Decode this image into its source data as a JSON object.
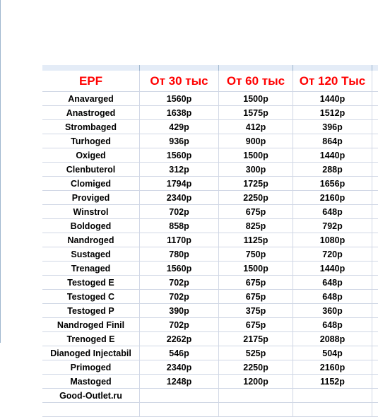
{
  "table": {
    "header": [
      "EPF",
      "От 30 тыс",
      "От 60 тыс",
      "От 120 Тыс"
    ],
    "rows": [
      [
        "Anavarged",
        "1560р",
        "1500р",
        "1440р"
      ],
      [
        "Anastroged",
        "1638р",
        "1575р",
        "1512р"
      ],
      [
        "Strombaged",
        "429р",
        "412р",
        "396р"
      ],
      [
        "Turhoged",
        "936р",
        "900р",
        "864р"
      ],
      [
        "Oxiged",
        "1560р",
        "1500р",
        "1440р"
      ],
      [
        "Clenbuterol",
        "312р",
        "300р",
        "288р"
      ],
      [
        "Clomiged",
        "1794р",
        "1725р",
        "1656р"
      ],
      [
        "Proviged",
        "2340р",
        "2250р",
        "2160р"
      ],
      [
        "Winstrol",
        "702р",
        "675р",
        "648р"
      ],
      [
        "Boldoged",
        "858р",
        "825р",
        "792р"
      ],
      [
        "Nandroged",
        "1170р",
        "1125р",
        "1080р"
      ],
      [
        "Sustaged",
        "780р",
        "750р",
        "720р"
      ],
      [
        "Trenaged",
        "1560р",
        "1500р",
        "1440р"
      ],
      [
        "Testoged E",
        "702р",
        "675р",
        "648р"
      ],
      [
        "Testoged C",
        "702р",
        "675р",
        "648р"
      ],
      [
        "Testoged P",
        "390р",
        "375р",
        "360р"
      ],
      [
        "Nandroged Finil",
        "702р",
        "675р",
        "648р"
      ],
      [
        "Trenoged E",
        "2262р",
        "2175р",
        "2088р"
      ],
      [
        "Dianoged Injectabil",
        "546р",
        "525р",
        "504р"
      ],
      [
        "Primoged",
        "2340р",
        "2250р",
        "2160р"
      ],
      [
        "Mastoged",
        "1248р",
        "1200р",
        "1152р"
      ]
    ],
    "footer": "Good-Outlet.ru"
  }
}
